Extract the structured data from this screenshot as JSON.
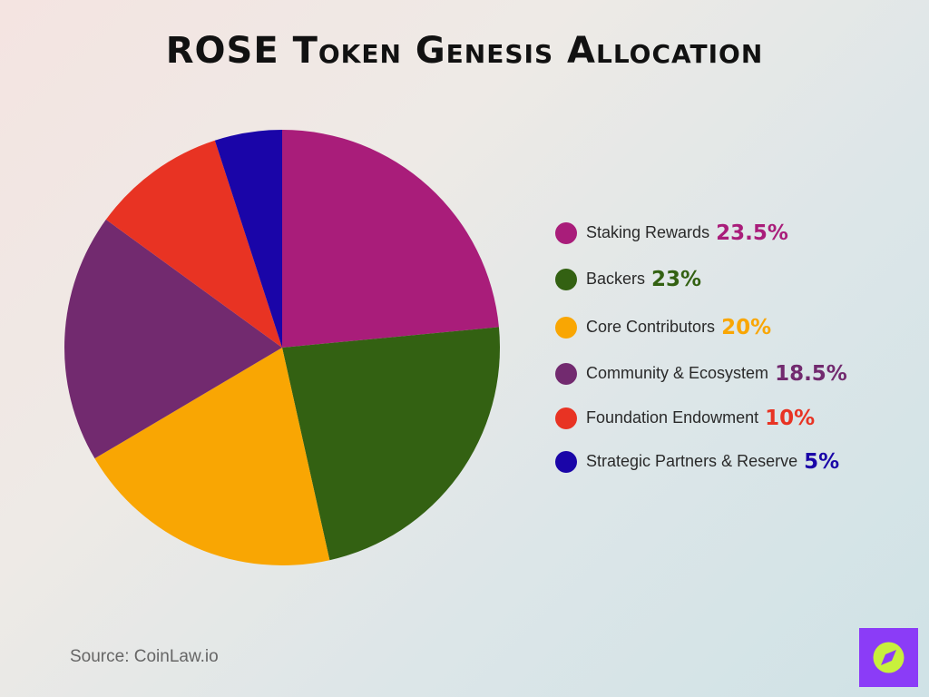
{
  "chart_data": {
    "type": "pie",
    "title": "ROSE Token Genesis Allocation",
    "categories": [
      "Staking Rewards",
      "Backers",
      "Core Contributors",
      "Community & Ecosystem",
      "Foundation Endowment",
      "Strategic Partners & Reserve"
    ],
    "values": [
      23.5,
      23,
      20,
      18.5,
      10,
      5
    ],
    "value_labels": [
      "23.5%",
      "23%",
      "20%",
      "18.5%",
      "10%",
      "5%"
    ],
    "colors": [
      "#a91d7a",
      "#336112",
      "#f9a603",
      "#722a6f",
      "#e83323",
      "#1a05a8"
    ],
    "source": "Source: CoinLaw.io"
  }
}
